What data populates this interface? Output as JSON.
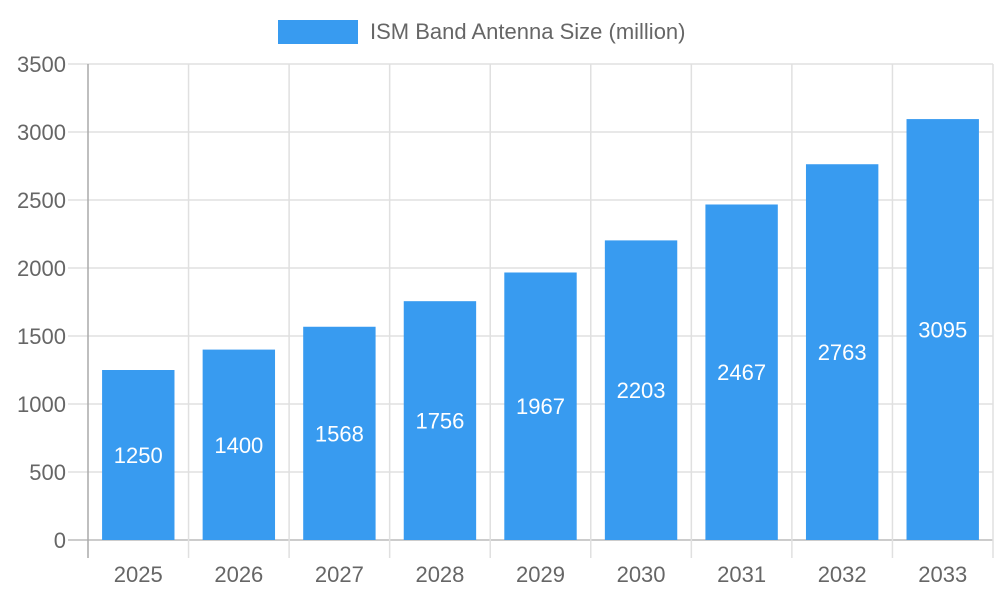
{
  "chart_data": {
    "type": "bar",
    "title": "",
    "xlabel": "",
    "ylabel": "",
    "categories": [
      "2025",
      "2026",
      "2027",
      "2028",
      "2029",
      "2030",
      "2031",
      "2032",
      "2033"
    ],
    "series": [
      {
        "name": "ISM Band Antenna Size (million)",
        "values": [
          1250,
          1400,
          1568,
          1756,
          1967,
          2203,
          2467,
          2763,
          3095
        ],
        "color": "#389BF0"
      }
    ],
    "ylim": [
      0,
      3500
    ],
    "yticks": [
      0,
      500,
      1000,
      1500,
      2000,
      2500,
      3000,
      3500
    ],
    "grid": true,
    "legend": "top-center",
    "data_labels": true
  }
}
